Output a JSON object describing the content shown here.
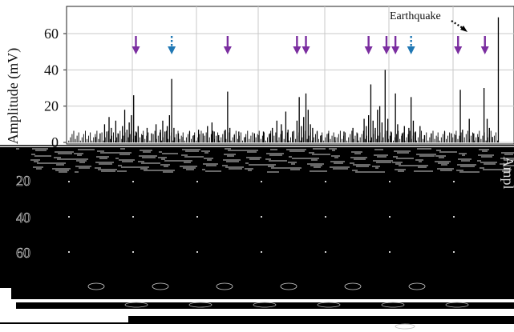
{
  "chart_data": {
    "type": "bar",
    "ylabel_top": "Amplitude (mV)",
    "ylabel_right": "Ampl",
    "yticks": [
      0,
      20,
      40,
      60
    ],
    "yticks_mirror": [
      20,
      40,
      60
    ],
    "ylim": [
      0,
      75
    ],
    "xlim": [
      0,
      1000
    ],
    "grid": true,
    "annotation": {
      "text": "Earthquake",
      "x": 965
    },
    "event_x": 965,
    "purple_markers": [
      155,
      360,
      515,
      535,
      675,
      715,
      735,
      875,
      935
    ],
    "blue_markers": [
      235,
      770
    ],
    "colors": {
      "purple": "#7b2ea0",
      "blue": "#1f77b4",
      "signal": "#000000",
      "grid": "#c8c8c8"
    },
    "spikes": [
      [
        65,
        3
      ],
      [
        75,
        5
      ],
      [
        85,
        10
      ],
      [
        90,
        6
      ],
      [
        95,
        14
      ],
      [
        100,
        8
      ],
      [
        110,
        12
      ],
      [
        115,
        5
      ],
      [
        125,
        9
      ],
      [
        130,
        18
      ],
      [
        135,
        7
      ],
      [
        140,
        11
      ],
      [
        145,
        15
      ],
      [
        150,
        26
      ],
      [
        155,
        6
      ],
      [
        160,
        9
      ],
      [
        170,
        4
      ],
      [
        180,
        8
      ],
      [
        190,
        5
      ],
      [
        200,
        10
      ],
      [
        210,
        7
      ],
      [
        215,
        12
      ],
      [
        220,
        6
      ],
      [
        225,
        9
      ],
      [
        230,
        15
      ],
      [
        235,
        35
      ],
      [
        240,
        8
      ],
      [
        250,
        5
      ],
      [
        260,
        3
      ],
      [
        275,
        6
      ],
      [
        285,
        4
      ],
      [
        295,
        7
      ],
      [
        305,
        5
      ],
      [
        315,
        9
      ],
      [
        325,
        11
      ],
      [
        330,
        6
      ],
      [
        340,
        4
      ],
      [
        355,
        7
      ],
      [
        360,
        28
      ],
      [
        365,
        8
      ],
      [
        375,
        4
      ],
      [
        385,
        6
      ],
      [
        400,
        3
      ],
      [
        420,
        5
      ],
      [
        430,
        4
      ],
      [
        440,
        6
      ],
      [
        455,
        5
      ],
      [
        460,
        8
      ],
      [
        470,
        12
      ],
      [
        480,
        10
      ],
      [
        490,
        17
      ],
      [
        495,
        7
      ],
      [
        505,
        6
      ],
      [
        515,
        12
      ],
      [
        520,
        25
      ],
      [
        525,
        9
      ],
      [
        530,
        14
      ],
      [
        535,
        27
      ],
      [
        540,
        18
      ],
      [
        545,
        10
      ],
      [
        550,
        8
      ],
      [
        560,
        6
      ],
      [
        570,
        4
      ],
      [
        585,
        5
      ],
      [
        600,
        3
      ],
      [
        620,
        6
      ],
      [
        640,
        8
      ],
      [
        650,
        5
      ],
      [
        665,
        13
      ],
      [
        670,
        9
      ],
      [
        675,
        15
      ],
      [
        680,
        32
      ],
      [
        685,
        12
      ],
      [
        690,
        8
      ],
      [
        695,
        18
      ],
      [
        700,
        20
      ],
      [
        705,
        11
      ],
      [
        712,
        40
      ],
      [
        718,
        13
      ],
      [
        725,
        6
      ],
      [
        735,
        27
      ],
      [
        740,
        10
      ],
      [
        750,
        5
      ],
      [
        755,
        9
      ],
      [
        765,
        8
      ],
      [
        770,
        25
      ],
      [
        775,
        12
      ],
      [
        780,
        6
      ],
      [
        790,
        9
      ],
      [
        800,
        4
      ],
      [
        815,
        5
      ],
      [
        830,
        3
      ],
      [
        845,
        6
      ],
      [
        860,
        5
      ],
      [
        870,
        4
      ],
      [
        880,
        29
      ],
      [
        885,
        7
      ],
      [
        900,
        13
      ],
      [
        910,
        5
      ],
      [
        920,
        3
      ],
      [
        933,
        30
      ],
      [
        940,
        13
      ],
      [
        945,
        8
      ],
      [
        952,
        3
      ],
      [
        965,
        69
      ]
    ]
  }
}
